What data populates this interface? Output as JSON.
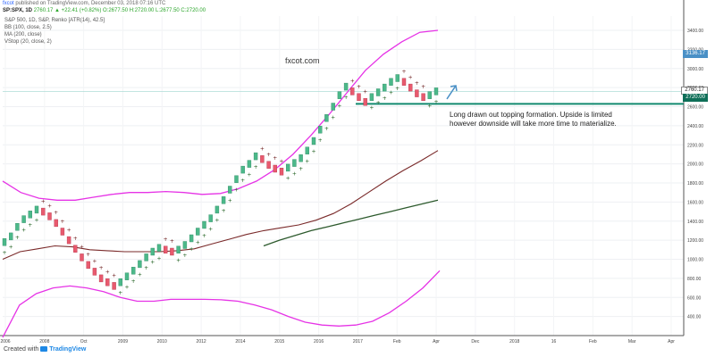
{
  "header": {
    "author": "fxcot",
    "published": "published on TradingView.com, December 03, 2018 07:16 UTC",
    "symbol": "SP:SPX, 1D",
    "values": "2760.17 ▲ +22.41 (+0.82%) O:2677.50 H:2720.00 L:2677.50 C:2720.00"
  },
  "indicators": [
    "S&P 500, 1D, S&P, Renko [ATR(14), 42.5]",
    "BB (100, close, 2.5)",
    "MA (200, close)",
    "VStop (20, close, 2)"
  ],
  "watermark": "fxcot.com",
  "annotation": "Long drawn out topping formation. Upside is limited however downside will take more time to materialize.",
  "footer": {
    "prefix": "Created with",
    "brand": "TradingView"
  },
  "colors": {
    "up": "#4cb88a",
    "down": "#e85a6e",
    "bb": "#e633e6",
    "ma": "#7a2a2a",
    "vstop_dark": "#2d5a2d",
    "support": "#138a70",
    "arrow": "#4a90c6"
  },
  "chart_data": {
    "type": "line",
    "xtick_labels": [
      "2006",
      "2008",
      "Oct",
      "2009",
      "2010",
      "2012",
      "2014",
      "2015",
      "2016",
      "2017",
      "Feb",
      "Apr",
      "Dec",
      "2018",
      "16",
      "Feb",
      "Mar",
      "Apr"
    ],
    "yaxis_labels": [
      400,
      600,
      800,
      1000,
      1200,
      1400,
      1600,
      1800,
      2000,
      2200,
      2400,
      2600,
      2800,
      3000,
      3200,
      3400
    ],
    "ylim": [
      200,
      3550
    ],
    "price_tags": {
      "upper": "3136.17",
      "last": "2760.17",
      "current": "2720.00"
    },
    "support_level": 2630,
    "series": [
      {
        "values": [
          1180,
          1240,
          1340,
          1420,
          1470,
          1520,
          1500,
          1450,
          1380,
          1290,
          1200,
          1110,
          1020,
          940,
          870,
          800,
          760,
          720,
          760,
          820,
          880,
          950,
          1020,
          1080,
          1120,
          1100,
          1080,
          1100,
          1150,
          1220,
          1290,
          1360,
          1430,
          1520,
          1620,
          1730,
          1840,
          1940,
          2000,
          2080,
          2050,
          1990,
          1950,
          1920,
          1960,
          2010,
          2060,
          2140,
          2240,
          2360,
          2480,
          2600,
          2720,
          2810,
          2760,
          2700,
          2650,
          2700,
          2750,
          2800,
          2860,
          2900,
          2860,
          2800,
          2740,
          2700,
          2720,
          2760
        ]
      },
      {
        "values": [
          1820,
          1700,
          1640,
          1620,
          1620,
          1650,
          1680,
          1700,
          1700,
          1710,
          1700,
          1680,
          1690,
          1740,
          1820,
          1940,
          2100,
          2300,
          2520,
          2750,
          2980,
          3150,
          3280,
          3380,
          3400
        ]
      },
      {
        "values": [
          180,
          520,
          640,
          700,
          720,
          700,
          660,
          600,
          560,
          560,
          580,
          580,
          580,
          575,
          560,
          520,
          470,
          400,
          340,
          310,
          300,
          310,
          350,
          440,
          560,
          700,
          880
        ]
      },
      {
        "values": [
          1000,
          1080,
          1110,
          1140,
          1130,
          1100,
          1090,
          1080,
          1080,
          1080,
          1090,
          1110,
          1160,
          1210,
          1260,
          1300,
          1330,
          1360,
          1410,
          1480,
          1580,
          1700,
          1820,
          1930,
          2030,
          2140
        ]
      },
      {
        "values": [
          1140,
          1200,
          1250,
          1300,
          1340,
          1380,
          1420,
          1460,
          1500,
          1540,
          1580,
          1620
        ]
      }
    ]
  }
}
